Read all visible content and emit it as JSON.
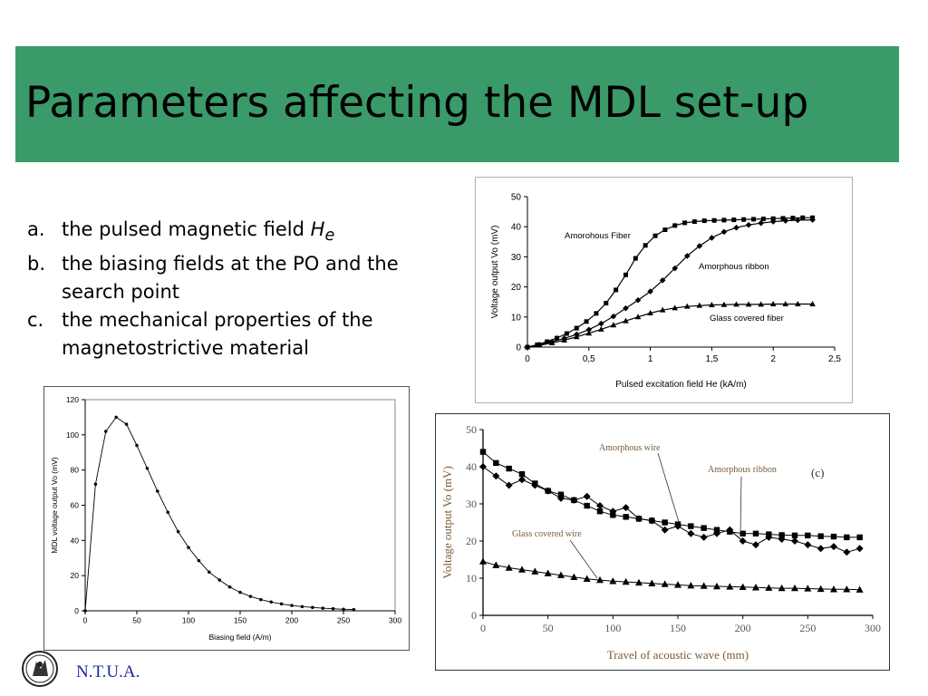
{
  "title": "Parameters affecting the MDL set-up",
  "bullets": [
    {
      "letter": "a.",
      "text": "the pulsed magnetic field ",
      "italic": "H",
      "sub": "e"
    },
    {
      "letter": "b.",
      "text": "the biasing fields at the PO and the search point"
    },
    {
      "letter": "c.",
      "text": "the mechanical properties of the magnetostrictive material"
    }
  ],
  "footer": {
    "text": "N.T.U.A."
  },
  "colors": {
    "title_bar": "#3a9a6a",
    "footer_text": "#1a2a9a"
  },
  "chart_data": [
    {
      "type": "line",
      "xlabel": "Pulsed excitation field He (kA/m)",
      "ylabel": "Voltage output Vo (mV)",
      "xlim": [
        0,
        2.5
      ],
      "ylim": [
        0,
        50
      ],
      "xticks": [
        "0",
        "0,5",
        "1",
        "1,5",
        "2",
        "2,5"
      ],
      "yticks": [
        "0",
        "10",
        "20",
        "30",
        "40",
        "50"
      ],
      "grid": false,
      "series": [
        {
          "name": "Amorohous Fiber",
          "marker": "square",
          "x": [
            0,
            0.08,
            0.16,
            0.24,
            0.32,
            0.4,
            0.48,
            0.56,
            0.64,
            0.72,
            0.8,
            0.88,
            0.96,
            1.04,
            1.12,
            1.2,
            1.28,
            1.36,
            1.44,
            1.52,
            1.6,
            1.68,
            1.76,
            1.84,
            1.92,
            2.0,
            2.08,
            2.16,
            2.24,
            2.32
          ],
          "y": [
            0,
            0.8,
            1.8,
            3,
            4.5,
            6.3,
            8.5,
            11.2,
            14.6,
            19,
            24,
            29.5,
            33.8,
            37,
            39,
            40.4,
            41.3,
            41.7,
            42,
            42.1,
            42.2,
            42.3,
            42.4,
            42.5,
            42.6,
            42.7,
            42.8,
            42.9,
            43,
            43
          ]
        },
        {
          "name": "Amorphous ribbon",
          "marker": "diamond",
          "x": [
            0,
            0.1,
            0.2,
            0.3,
            0.4,
            0.5,
            0.6,
            0.7,
            0.8,
            0.9,
            1.0,
            1.1,
            1.2,
            1.3,
            1.4,
            1.5,
            1.6,
            1.7,
            1.8,
            1.9,
            2.0,
            2.1,
            2.2,
            2.32
          ],
          "y": [
            0,
            0.8,
            1.8,
            2.9,
            4.2,
            5.8,
            7.8,
            10.2,
            12.9,
            15.6,
            18.5,
            22.2,
            26.2,
            30.3,
            33.6,
            36.3,
            38.3,
            39.7,
            40.6,
            41.2,
            41.7,
            42,
            42.2,
            42.3
          ]
        },
        {
          "name": "Glass covered fiber",
          "marker": "triangle",
          "x": [
            0,
            0.1,
            0.2,
            0.3,
            0.4,
            0.5,
            0.6,
            0.7,
            0.8,
            0.9,
            1.0,
            1.1,
            1.2,
            1.3,
            1.4,
            1.5,
            1.6,
            1.7,
            1.8,
            1.9,
            2.0,
            2.1,
            2.2,
            2.32
          ],
          "y": [
            0,
            0.6,
            1.4,
            2.3,
            3.4,
            4.6,
            5.9,
            7.3,
            8.7,
            10,
            11.3,
            12.3,
            13,
            13.5,
            13.8,
            14,
            14.1,
            14.2,
            14.2,
            14.2,
            14.3,
            14.3,
            14.3,
            14.3
          ]
        }
      ]
    },
    {
      "type": "line",
      "xlabel": "Biasing field (A/m)",
      "ylabel": "MDL voltage output Vo (mV)",
      "xlim": [
        0,
        300
      ],
      "ylim": [
        0,
        120
      ],
      "xticks": [
        "0",
        "50",
        "100",
        "150",
        "200",
        "250",
        "300"
      ],
      "yticks": [
        "0",
        "20",
        "40",
        "60",
        "80",
        "100",
        "120"
      ],
      "grid": false,
      "series": [
        {
          "name": "",
          "marker": "dot",
          "x": [
            0,
            10,
            20,
            30,
            40,
            50,
            60,
            70,
            80,
            90,
            100,
            110,
            120,
            130,
            140,
            150,
            160,
            170,
            180,
            190,
            200,
            210,
            220,
            230,
            240,
            250,
            260
          ],
          "y": [
            0,
            72,
            102,
            110,
            106,
            94,
            81,
            68,
            56,
            45,
            36,
            28.5,
            22,
            17.5,
            13.5,
            10.5,
            8.2,
            6.4,
            5,
            3.9,
            3,
            2.4,
            1.9,
            1.5,
            1.2,
            0.9,
            0.7
          ]
        }
      ]
    },
    {
      "type": "line",
      "annotation": "(c)",
      "xlabel": "Travel of acoustic wave (mm)",
      "ylabel": "Voltage output Vo (mV)",
      "xlim": [
        0,
        300
      ],
      "ylim": [
        0,
        50
      ],
      "xticks": [
        "0",
        "50",
        "100",
        "150",
        "200",
        "250",
        "300"
      ],
      "yticks": [
        "0",
        "10",
        "20",
        "30",
        "40",
        "50"
      ],
      "grid": false,
      "series": [
        {
          "name": "Amorphous wire",
          "marker": "diamond",
          "x": [
            0,
            10,
            20,
            30,
            40,
            50,
            60,
            70,
            80,
            90,
            100,
            110,
            120,
            130,
            140,
            150,
            160,
            170,
            180,
            190,
            200,
            210,
            220,
            230,
            240,
            250,
            260,
            270,
            280,
            290
          ],
          "y": [
            40,
            37.5,
            35,
            36.5,
            35,
            33.5,
            31.5,
            31,
            32,
            29.5,
            28,
            29,
            26,
            25.5,
            23,
            24,
            22,
            21,
            22,
            23,
            20,
            19,
            21,
            20.5,
            20,
            19,
            18,
            18.5,
            17,
            18
          ]
        },
        {
          "name": "Amorphous ribbon",
          "marker": "square",
          "x": [
            0,
            10,
            20,
            30,
            40,
            50,
            60,
            70,
            80,
            90,
            100,
            110,
            120,
            130,
            140,
            150,
            160,
            170,
            180,
            190,
            200,
            210,
            220,
            230,
            240,
            250,
            260,
            270,
            280,
            290
          ],
          "y": [
            44,
            41,
            39.5,
            38,
            35.5,
            33.5,
            32.5,
            31,
            29.5,
            28,
            27,
            26.5,
            26,
            25.5,
            25,
            24.5,
            24,
            23.5,
            23,
            22.5,
            22,
            22,
            21.8,
            21.6,
            21.5,
            21.5,
            21.3,
            21.2,
            21,
            21
          ]
        },
        {
          "name": "Glass covered wire",
          "marker": "triangle",
          "x": [
            0,
            10,
            20,
            30,
            40,
            50,
            60,
            70,
            80,
            90,
            100,
            110,
            120,
            130,
            140,
            150,
            160,
            170,
            180,
            190,
            200,
            210,
            220,
            230,
            240,
            250,
            260,
            270,
            280,
            290
          ],
          "y": [
            14.5,
            13.5,
            12.8,
            12.3,
            11.8,
            11.3,
            10.8,
            10.3,
            9.8,
            9.5,
            9.2,
            9,
            8.8,
            8.6,
            8.4,
            8.2,
            8,
            7.9,
            7.8,
            7.7,
            7.6,
            7.5,
            7.4,
            7.3,
            7.3,
            7.2,
            7.1,
            7,
            7,
            6.9
          ]
        }
      ]
    }
  ]
}
